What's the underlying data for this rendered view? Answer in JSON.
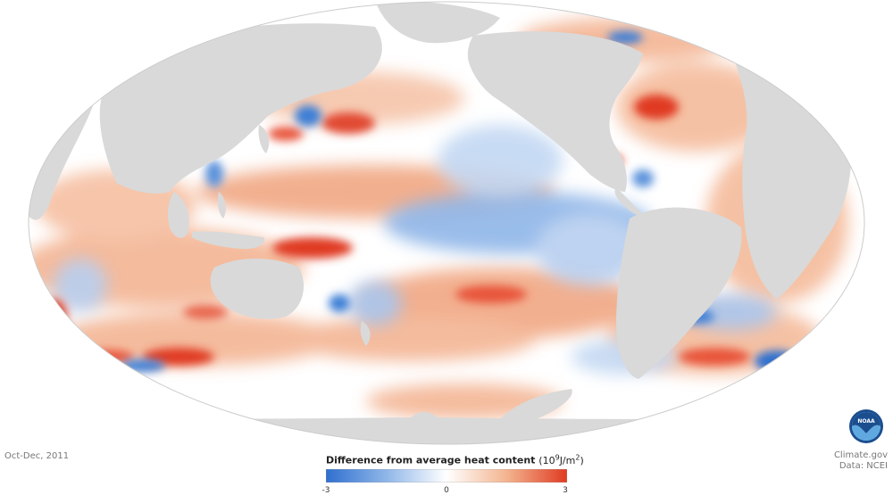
{
  "map": {
    "projection": "Mollweide (Pacific-centered)",
    "period_label": "Oct-Dec, 2011",
    "colors": {
      "land": "#d9d9d9",
      "ocean_neutral": "#ffffff",
      "warm": "#e8442a",
      "cool": "#3d7fd6"
    }
  },
  "legend": {
    "title": "Difference from average heat content",
    "unit_base": "(10",
    "unit_exp": "9",
    "unit_mid": "J/m",
    "unit_exp2": "2",
    "unit_end": ")",
    "min_label": "-3",
    "mid_label": "0",
    "max_label": "3",
    "scale_min": -3,
    "scale_max": 3,
    "colors": [
      "#2f6fcf",
      "#8fb6e8",
      "#ffffff",
      "#f3b48f",
      "#e03b22"
    ]
  },
  "credits": {
    "source": "Climate.gov",
    "data": "Data: NCEI"
  },
  "logo": {
    "text": "NOAA",
    "icon": "noaa-logo-icon"
  }
}
